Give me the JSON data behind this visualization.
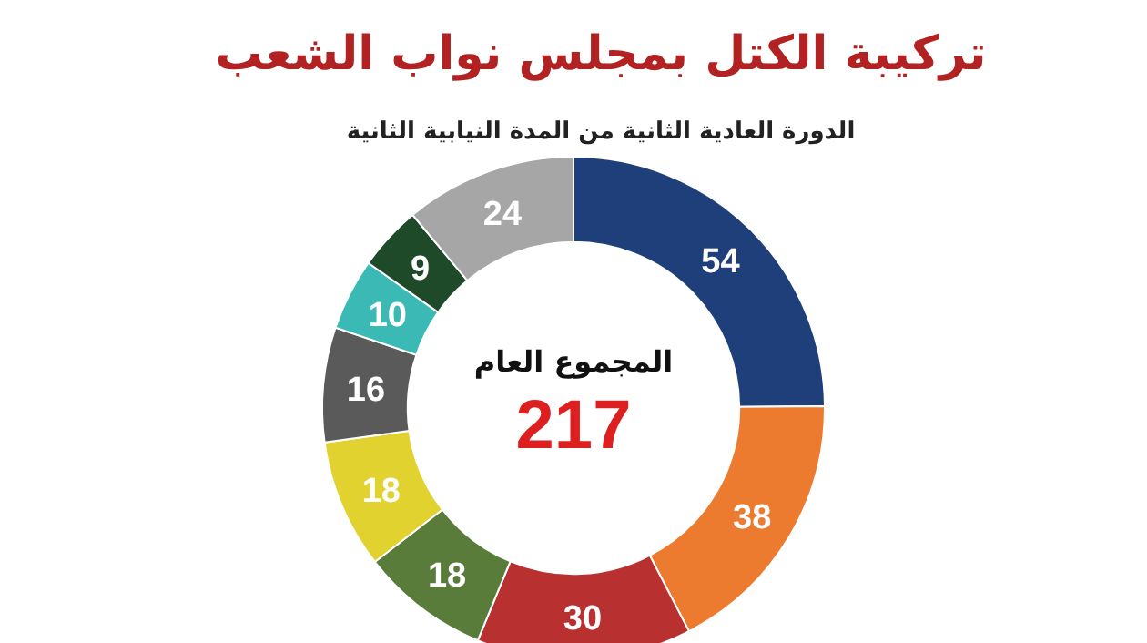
{
  "chart_data": {
    "type": "donut",
    "title": "تركيبة الكتل بمجلس نواب الشعب",
    "subtitle": "الدورة العادية الثانية من المدة النيابية الثانية",
    "categories": [
      null,
      null,
      null,
      null,
      null,
      null,
      null,
      null,
      null
    ],
    "values": [
      54,
      38,
      30,
      18,
      18,
      16,
      10,
      9,
      24
    ],
    "colors": [
      "#1f3f7a",
      "#ec7a2f",
      "#b8302f",
      "#5a7c3a",
      "#e2d22f",
      "#5a5a5a",
      "#3bb9b5",
      "#1f4a2a",
      "#a6a6a6"
    ],
    "data_labels": true,
    "annotations": [
      "المجموع العام",
      "217"
    ]
  }
}
